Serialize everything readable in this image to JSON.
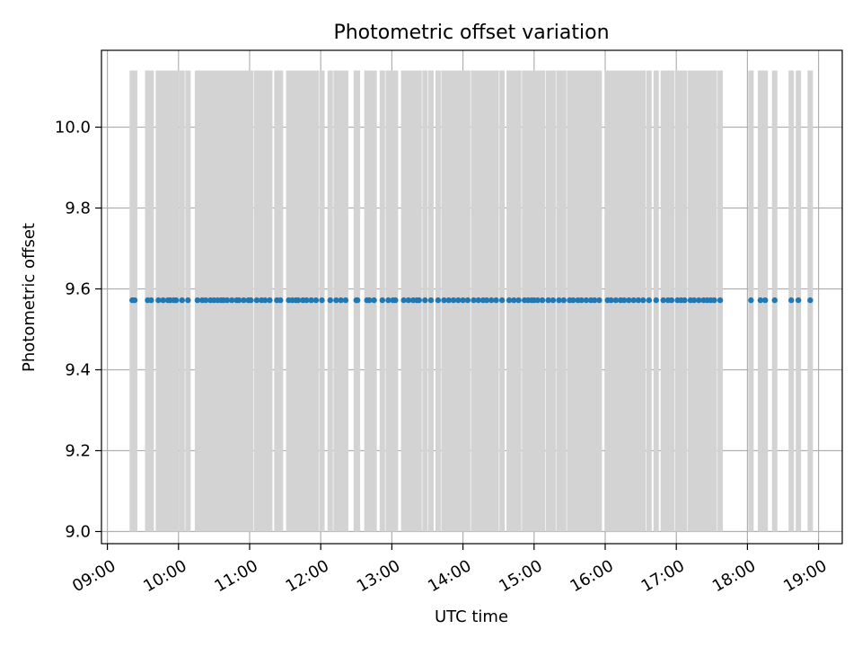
{
  "chart_data": {
    "type": "scatter",
    "title": "Photometric offset variation",
    "xlabel": "UTC time",
    "ylabel": "Photometric offset",
    "xlim": [
      "08:55",
      "19:20"
    ],
    "ylim": [
      8.97,
      10.19
    ],
    "xticks": [
      "09:00",
      "10:00",
      "11:00",
      "12:00",
      "13:00",
      "14:00",
      "15:00",
      "16:00",
      "17:00",
      "18:00",
      "19:00"
    ],
    "yticks": [
      "9.0",
      "9.2",
      "9.4",
      "9.6",
      "9.8",
      "10.0"
    ],
    "grid": true,
    "colors": {
      "points": "#1f77b4",
      "bars": "#d3d3d3",
      "grid": "#b0b0b0"
    },
    "series": [
      {
        "marker": "point",
        "y": 9.572,
        "x": [
          "09:21",
          "09:23",
          "09:34",
          "09:37",
          "09:43",
          "09:47",
          "09:51",
          "09:53",
          "09:56",
          "09:58",
          "10:03",
          "10:08",
          "10:16",
          "10:20",
          "10:23",
          "10:27",
          "10:30",
          "10:33",
          "10:36",
          "10:38",
          "10:41",
          "10:45",
          "10:49",
          "10:51",
          "10:55",
          "10:59",
          "11:01",
          "11:06",
          "11:10",
          "11:13",
          "11:17",
          "11:23",
          "11:26",
          "11:33",
          "11:36",
          "11:39",
          "11:41",
          "11:45",
          "11:48",
          "11:52",
          "11:56",
          "12:01",
          "12:08",
          "12:13",
          "12:17",
          "12:21",
          "12:30",
          "12:31",
          "12:39",
          "12:41",
          "12:45",
          "12:52",
          "12:57",
          "13:01",
          "13:03",
          "13:10",
          "13:14",
          "13:18",
          "13:21",
          "13:23",
          "13:28",
          "13:33",
          "13:39",
          "13:44",
          "13:48",
          "13:52",
          "13:56",
          "14:00",
          "14:04",
          "14:09",
          "14:13",
          "14:17",
          "14:20",
          "14:24",
          "14:28",
          "14:33",
          "14:39",
          "14:43",
          "14:47",
          "14:52",
          "14:55",
          "14:58",
          "15:00",
          "15:03",
          "15:07",
          "15:12",
          "15:16",
          "15:21",
          "15:25",
          "15:30",
          "15:33",
          "15:37",
          "15:40",
          "15:44",
          "15:48",
          "15:51",
          "15:55",
          "16:02",
          "16:05",
          "16:09",
          "16:13",
          "16:16",
          "16:20",
          "16:24",
          "16:28",
          "16:32",
          "16:37",
          "16:43",
          "16:49",
          "16:53",
          "16:56",
          "17:01",
          "17:04",
          "17:07",
          "17:12",
          "17:15",
          "17:19",
          "17:23",
          "17:26",
          "17:29",
          "17:32",
          "17:37",
          "18:03",
          "18:11",
          "18:15",
          "18:23",
          "18:37",
          "18:43",
          "18:53"
        ]
      },
      {
        "marker": "error-bar",
        "lower": 9.0,
        "upper": 10.14,
        "x": [
          "09:21",
          "09:23",
          "09:34",
          "09:37",
          "09:43",
          "09:47",
          "09:51",
          "09:53",
          "09:56",
          "09:58",
          "10:03",
          "10:08",
          "10:16",
          "10:20",
          "10:23",
          "10:27",
          "10:30",
          "10:33",
          "10:36",
          "10:38",
          "10:41",
          "10:45",
          "10:49",
          "10:51",
          "10:55",
          "10:59",
          "11:01",
          "11:06",
          "11:10",
          "11:13",
          "11:17",
          "11:23",
          "11:26",
          "11:33",
          "11:36",
          "11:39",
          "11:41",
          "11:45",
          "11:48",
          "11:52",
          "11:56",
          "12:01",
          "12:08",
          "12:13",
          "12:17",
          "12:21",
          "12:30",
          "12:31",
          "12:39",
          "12:41",
          "12:45",
          "12:52",
          "12:57",
          "13:01",
          "13:03",
          "13:10",
          "13:14",
          "13:18",
          "13:21",
          "13:23",
          "13:28",
          "13:33",
          "13:39",
          "13:44",
          "13:48",
          "13:52",
          "13:56",
          "14:00",
          "14:04",
          "14:09",
          "14:13",
          "14:17",
          "14:20",
          "14:24",
          "14:28",
          "14:33",
          "14:39",
          "14:43",
          "14:47",
          "14:52",
          "14:55",
          "14:58",
          "15:00",
          "15:03",
          "15:07",
          "15:12",
          "15:16",
          "15:21",
          "15:25",
          "15:30",
          "15:33",
          "15:37",
          "15:40",
          "15:44",
          "15:48",
          "15:51",
          "15:55",
          "16:02",
          "16:05",
          "16:09",
          "16:13",
          "16:16",
          "16:20",
          "16:24",
          "16:28",
          "16:32",
          "16:37",
          "16:43",
          "16:49",
          "16:53",
          "16:56",
          "17:01",
          "17:04",
          "17:07",
          "17:12",
          "17:15",
          "17:19",
          "17:23",
          "17:26",
          "17:29",
          "17:32",
          "17:37",
          "18:03",
          "18:11",
          "18:15",
          "18:23",
          "18:37",
          "18:43",
          "18:53"
        ]
      }
    ]
  }
}
